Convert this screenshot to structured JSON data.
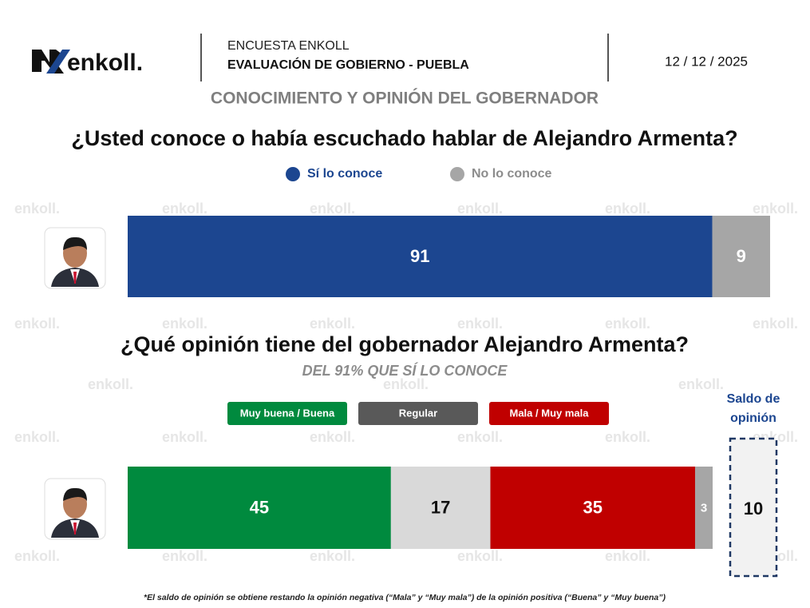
{
  "header": {
    "logo": "enkoll.",
    "survey": "ENCUESTA ENKOLL",
    "report": "EVALUACIÓN DE GOBIERNO - PUEBLA",
    "date": "12 / 12 / 2025",
    "section": "CONOCIMIENTO Y OPINIÓN DEL GOBERNADOR"
  },
  "watermark": "enkoll.",
  "footnote": "*El saldo de opinión se obtiene restando la opinión negativa (“Mala” y “Muy mala”) de la opinión positiva (“Buena” y “Muy buena”)",
  "chart_data": [
    {
      "type": "stacked-bar",
      "orientation": "horizontal",
      "title": "¿Usted conoce o había escuchado hablar de Alejandro Armenta?",
      "categories": [
        null
      ],
      "xlim": [
        0,
        100
      ],
      "series": [
        {
          "name": "Sí lo conoce",
          "color": "#1c4690",
          "values": [
            91
          ]
        },
        {
          "name": "No lo conoce",
          "color": "#a6a6a6",
          "values": [
            9
          ]
        }
      ]
    },
    {
      "type": "stacked-bar",
      "orientation": "horizontal",
      "title": "¿Qué opinión tiene del gobernador Alejandro Armenta?",
      "subtitle": "DEL 91% QUE SÍ LO CONOCE",
      "categories": [
        null
      ],
      "xlim": [
        0,
        100
      ],
      "series": [
        {
          "name": "Muy buena / Buena",
          "color": "#008a3e",
          "legend_color": "#008a3e",
          "label_color": "#ffffff",
          "values": [
            45
          ]
        },
        {
          "name": "Regular",
          "color": "#d9d9d9",
          "legend_color": "#595959",
          "label_color": "#111111",
          "values": [
            17
          ]
        },
        {
          "name": "Mala / Muy mala",
          "color": "#c00000",
          "legend_color": "#c00000",
          "label_color": "#ffffff",
          "values": [
            35
          ]
        },
        {
          "name": null,
          "color": "#a6a6a6",
          "label_color": "#ffffff",
          "values": [
            3
          ]
        }
      ],
      "balance": {
        "label": "Saldo de opinión",
        "value": 10
      }
    }
  ]
}
